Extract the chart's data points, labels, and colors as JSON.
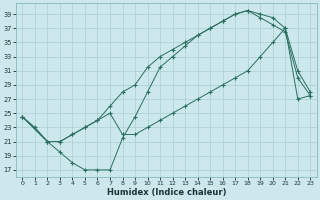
{
  "xlabel": "Humidex (Indice chaleur)",
  "bg_color": "#cce8ec",
  "grid_color": "#aacdd3",
  "line_color": "#2a6e5e",
  "xlim": [
    -0.5,
    23.5
  ],
  "ylim": [
    16.0,
    40.5
  ],
  "yticks": [
    17,
    19,
    21,
    23,
    25,
    27,
    29,
    31,
    33,
    35,
    37,
    39
  ],
  "xticks": [
    0,
    1,
    2,
    3,
    4,
    5,
    6,
    7,
    8,
    9,
    10,
    11,
    12,
    13,
    14,
    15,
    16,
    17,
    18,
    19,
    20,
    21,
    22,
    23
  ],
  "line1_x": [
    0,
    1,
    2,
    3,
    4,
    5,
    6,
    7,
    8,
    9,
    10,
    11,
    12,
    13,
    14,
    15,
    16,
    17,
    18,
    19,
    20,
    21,
    22,
    23
  ],
  "line1_y": [
    24.5,
    23,
    21,
    19.5,
    18,
    17,
    17,
    17,
    21.5,
    24.5,
    28,
    31.5,
    33,
    34.5,
    36,
    37,
    38,
    39,
    39.5,
    39,
    38.5,
    37,
    31,
    28
  ],
  "line2_x": [
    0,
    2,
    3,
    4,
    5,
    6,
    7,
    8,
    9,
    10,
    11,
    12,
    13,
    14,
    15,
    16,
    17,
    18,
    19,
    20,
    21,
    22,
    23
  ],
  "line2_y": [
    24.5,
    21,
    21,
    22,
    23,
    24,
    26,
    28,
    29,
    31.5,
    33,
    34,
    35,
    36,
    37,
    38,
    39,
    39.5,
    38.5,
    37.5,
    36.5,
    30,
    27.5
  ],
  "line3_x": [
    0,
    2,
    3,
    4,
    5,
    6,
    7,
    8,
    9,
    10,
    11,
    12,
    13,
    14,
    15,
    16,
    17,
    18,
    19,
    20,
    21,
    22,
    23
  ],
  "line3_y": [
    24.5,
    21,
    21,
    22,
    23,
    24,
    25,
    22,
    22,
    23,
    24,
    25,
    26,
    27,
    28,
    29,
    30,
    31,
    33,
    35,
    37,
    27,
    27.5
  ]
}
